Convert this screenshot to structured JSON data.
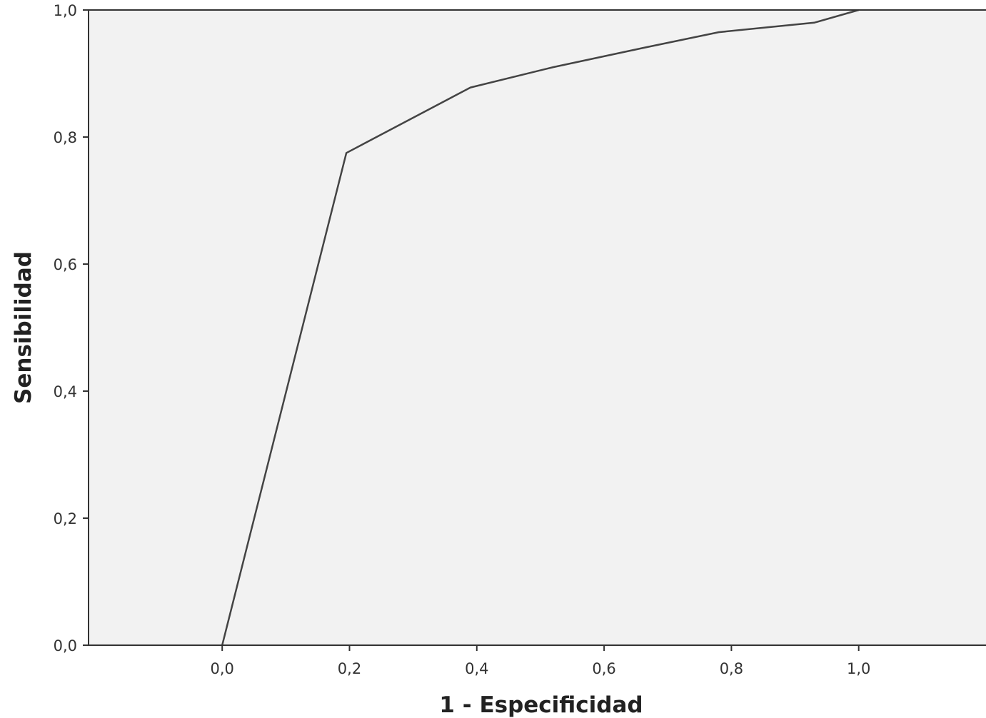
{
  "chart_data": {
    "type": "line",
    "title": "",
    "xlabel": "1 - Especificidad",
    "ylabel": "Sensibilidad",
    "xlim": [
      -0.21,
      1.2
    ],
    "ylim": [
      0,
      1
    ],
    "xticks": [
      0,
      0.2,
      0.4,
      0.6,
      0.8,
      1
    ],
    "yticks": [
      0,
      0.2,
      0.4,
      0.6,
      0.8,
      1
    ],
    "xtick_labels": [
      "0,0",
      "0,2",
      "0,4",
      "0,6",
      "0,8",
      "1,0"
    ],
    "ytick_labels": [
      "0,0",
      "0,2",
      "0,4",
      "0,6",
      "0,8",
      "1,0"
    ],
    "grid": false,
    "legend": "none",
    "colors": {
      "plot_background": "#f2f2f2",
      "line": "#444444",
      "axis": "#333333"
    },
    "series": [
      {
        "x": [
          0.0,
          0.195,
          0.39,
          0.52,
          0.66,
          0.78,
          0.93,
          1.0
        ],
        "y": [
          0.0,
          0.775,
          0.878,
          0.91,
          0.94,
          0.965,
          0.98,
          1.0
        ]
      }
    ]
  }
}
